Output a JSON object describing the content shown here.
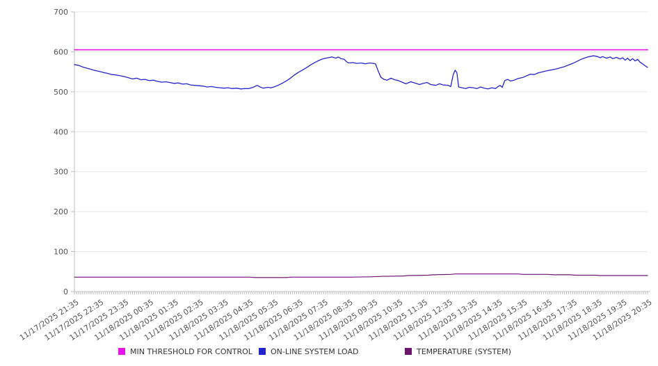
{
  "chart_data": {
    "type": "line",
    "title": "",
    "xlabel": "",
    "ylabel": "",
    "ylim": [
      0,
      700
    ],
    "y_ticks": [
      0,
      100,
      200,
      300,
      400,
      500,
      600,
      700
    ],
    "grid": "horizontal",
    "legend_position": "bottom",
    "x_axis": {
      "labels": [
        "11/17/2025 21:35",
        "11/17/2025 22:35",
        "11/17/2025 23:35",
        "11/18/2025 00:35",
        "11/18/2025 01:35",
        "11/18/2025 02:35",
        "11/18/2025 03:35",
        "11/18/2025 04:35",
        "11/18/2025 05:35",
        "11/18/2025 06:35",
        "11/18/2025 07:35",
        "11/18/2025 08:35",
        "11/18/2025 09:35",
        "11/18/2025 10:35",
        "11/18/2025 11:35",
        "11/18/2025 12:35",
        "11/18/2025 13:35",
        "11/18/2025 14:35",
        "11/18/2025 15:35",
        "11/18/2025 16:35",
        "11/18/2025 17:35",
        "11/18/2025 18:35",
        "11/18/2025 19:35",
        "11/18/2025 20:35"
      ],
      "minor_ticks_per_hour": 12,
      "label_rotation_deg": -33
    },
    "series": [
      {
        "name": "MIN THRESHOLD FOR CONTROL",
        "color": "#E614E6",
        "stroke_width": 1.6,
        "points": [
          [
            0,
            605
          ],
          [
            23,
            605
          ]
        ]
      },
      {
        "name": "ON-LINE SYSTEM LOAD",
        "color": "#2424CC",
        "stroke_width": 1.3,
        "points": [
          [
            0,
            568
          ],
          [
            0.17,
            566
          ],
          [
            0.33,
            562
          ],
          [
            0.5,
            559
          ],
          [
            0.67,
            556
          ],
          [
            0.83,
            553
          ],
          [
            1,
            551
          ],
          [
            1.17,
            548
          ],
          [
            1.33,
            546
          ],
          [
            1.5,
            543
          ],
          [
            1.67,
            542
          ],
          [
            1.83,
            540
          ],
          [
            2,
            538
          ],
          [
            2.17,
            535
          ],
          [
            2.33,
            532
          ],
          [
            2.5,
            534
          ],
          [
            2.67,
            530
          ],
          [
            2.83,
            531
          ],
          [
            3,
            528
          ],
          [
            3.17,
            529
          ],
          [
            3.33,
            526
          ],
          [
            3.5,
            524
          ],
          [
            3.67,
            525
          ],
          [
            3.83,
            523
          ],
          [
            4,
            521
          ],
          [
            4.17,
            522
          ],
          [
            4.33,
            519
          ],
          [
            4.5,
            520
          ],
          [
            4.67,
            517
          ],
          [
            4.83,
            516
          ],
          [
            5,
            515
          ],
          [
            5.17,
            514
          ],
          [
            5.33,
            512
          ],
          [
            5.5,
            513
          ],
          [
            5.67,
            511
          ],
          [
            5.83,
            510
          ],
          [
            6,
            509
          ],
          [
            6.17,
            510
          ],
          [
            6.33,
            508
          ],
          [
            6.5,
            509
          ],
          [
            6.67,
            507
          ],
          [
            6.83,
            508
          ],
          [
            7,
            508
          ],
          [
            7.17,
            511
          ],
          [
            7.33,
            516
          ],
          [
            7.45,
            512
          ],
          [
            7.58,
            509
          ],
          [
            7.75,
            511
          ],
          [
            7.9,
            510
          ],
          [
            8,
            512
          ],
          [
            8.17,
            516
          ],
          [
            8.33,
            521
          ],
          [
            8.5,
            527
          ],
          [
            8.67,
            534
          ],
          [
            8.83,
            542
          ],
          [
            9,
            549
          ],
          [
            9.17,
            555
          ],
          [
            9.33,
            561
          ],
          [
            9.5,
            568
          ],
          [
            9.67,
            574
          ],
          [
            9.83,
            579
          ],
          [
            10,
            583
          ],
          [
            10.17,
            585
          ],
          [
            10.33,
            587
          ],
          [
            10.5,
            584
          ],
          [
            10.58,
            587
          ],
          [
            10.7,
            583
          ],
          [
            10.83,
            581
          ],
          [
            10.92,
            575
          ],
          [
            11,
            572
          ],
          [
            11.17,
            573
          ],
          [
            11.33,
            571
          ],
          [
            11.5,
            572
          ],
          [
            11.67,
            570
          ],
          [
            11.83,
            572
          ],
          [
            12,
            571
          ],
          [
            12.08,
            570
          ],
          [
            12.2,
            550
          ],
          [
            12.3,
            536
          ],
          [
            12.42,
            531
          ],
          [
            12.55,
            529
          ],
          [
            12.7,
            534
          ],
          [
            12.85,
            530
          ],
          [
            13,
            528
          ],
          [
            13.15,
            524
          ],
          [
            13.3,
            520
          ],
          [
            13.5,
            525
          ],
          [
            13.7,
            521
          ],
          [
            13.85,
            518
          ],
          [
            14,
            521
          ],
          [
            14.15,
            523
          ],
          [
            14.3,
            518
          ],
          [
            14.5,
            516
          ],
          [
            14.65,
            520
          ],
          [
            14.8,
            517
          ],
          [
            15,
            516
          ],
          [
            15.1,
            513
          ],
          [
            15.2,
            543
          ],
          [
            15.28,
            554
          ],
          [
            15.35,
            547
          ],
          [
            15.42,
            512
          ],
          [
            15.55,
            510
          ],
          [
            15.7,
            508
          ],
          [
            15.85,
            511
          ],
          [
            16,
            510
          ],
          [
            16.15,
            508
          ],
          [
            16.3,
            512
          ],
          [
            16.45,
            509
          ],
          [
            16.6,
            507
          ],
          [
            16.75,
            510
          ],
          [
            16.9,
            508
          ],
          [
            17,
            513
          ],
          [
            17.08,
            516
          ],
          [
            17.17,
            511
          ],
          [
            17.27,
            528
          ],
          [
            17.38,
            531
          ],
          [
            17.5,
            527
          ],
          [
            17.65,
            529
          ],
          [
            17.8,
            533
          ],
          [
            18,
            536
          ],
          [
            18.15,
            540
          ],
          [
            18.3,
            544
          ],
          [
            18.45,
            543
          ],
          [
            18.6,
            547
          ],
          [
            18.8,
            550
          ],
          [
            19,
            553
          ],
          [
            19.17,
            555
          ],
          [
            19.33,
            557
          ],
          [
            19.5,
            560
          ],
          [
            19.67,
            563
          ],
          [
            19.83,
            567
          ],
          [
            20,
            571
          ],
          [
            20.17,
            576
          ],
          [
            20.33,
            581
          ],
          [
            20.5,
            585
          ],
          [
            20.67,
            588
          ],
          [
            20.83,
            590
          ],
          [
            21,
            588
          ],
          [
            21.1,
            585
          ],
          [
            21.2,
            588
          ],
          [
            21.35,
            584
          ],
          [
            21.5,
            587
          ],
          [
            21.6,
            583
          ],
          [
            21.75,
            586
          ],
          [
            21.9,
            582
          ],
          [
            22,
            585
          ],
          [
            22.1,
            579
          ],
          [
            22.2,
            584
          ],
          [
            22.3,
            578
          ],
          [
            22.4,
            583
          ],
          [
            22.5,
            577
          ],
          [
            22.6,
            581
          ],
          [
            22.7,
            574
          ],
          [
            22.8,
            570
          ],
          [
            22.9,
            565
          ],
          [
            23,
            561
          ]
        ]
      },
      {
        "name": "TEMPERATURE (SYSTEM)",
        "color": "#6E156E",
        "stroke_width": 1.2,
        "points": [
          [
            0,
            36
          ],
          [
            1,
            36
          ],
          [
            2,
            36
          ],
          [
            3,
            36
          ],
          [
            4,
            36
          ],
          [
            5,
            36
          ],
          [
            6,
            36
          ],
          [
            7,
            36
          ],
          [
            7.3,
            35
          ],
          [
            8.5,
            35
          ],
          [
            8.7,
            36
          ],
          [
            10,
            36
          ],
          [
            11,
            36
          ],
          [
            11.9,
            37
          ],
          [
            12.3,
            38
          ],
          [
            13.2,
            39
          ],
          [
            13.4,
            40
          ],
          [
            14.2,
            41
          ],
          [
            14.4,
            42
          ],
          [
            15.1,
            43
          ],
          [
            15.3,
            44
          ],
          [
            16,
            44
          ],
          [
            17,
            44
          ],
          [
            17.8,
            44
          ],
          [
            18,
            43
          ],
          [
            19,
            43
          ],
          [
            19.2,
            42
          ],
          [
            19.9,
            42
          ],
          [
            20.1,
            41
          ],
          [
            20.9,
            41
          ],
          [
            21.1,
            40
          ],
          [
            22,
            40
          ],
          [
            23,
            40
          ]
        ]
      }
    ],
    "colors": {
      "grid": "#e4e4e4",
      "axis": "#bdbdbd",
      "tick_label": "#545454",
      "legend_text": "#333333",
      "background": "#ffffff"
    }
  }
}
